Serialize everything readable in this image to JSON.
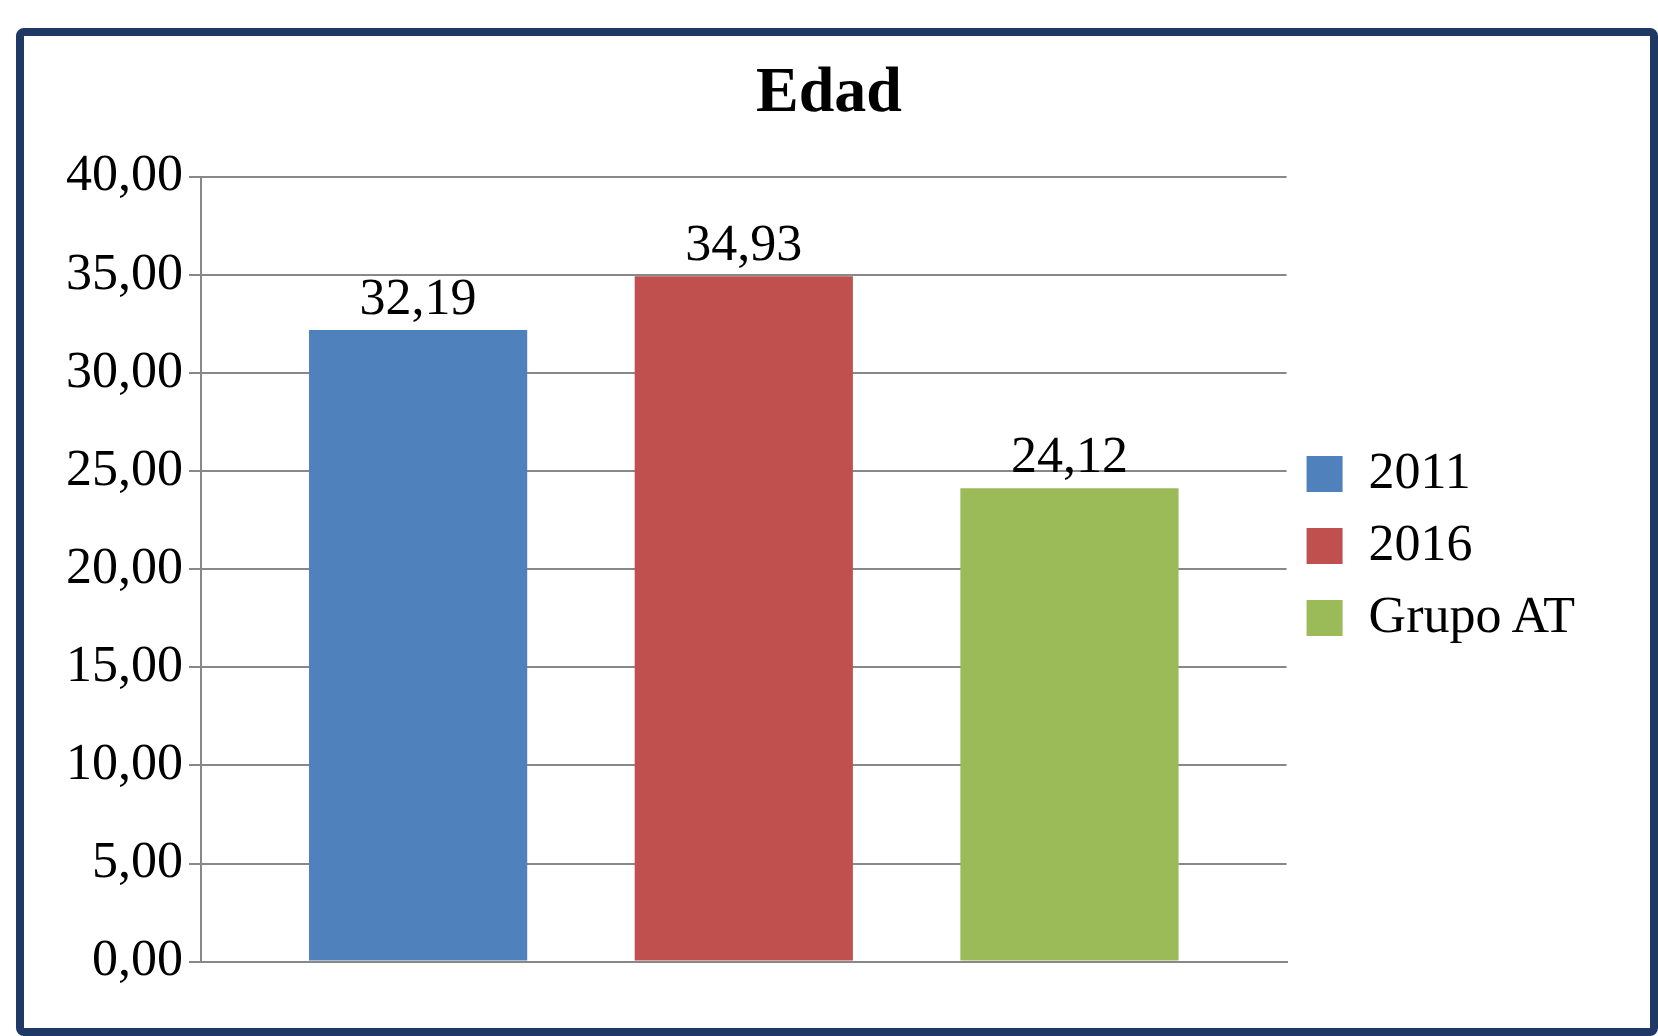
{
  "chart_data": {
    "type": "bar",
    "title": "Edad",
    "categories": [
      null
    ],
    "series": [
      {
        "name": "2011",
        "color": "#4f81bd",
        "values": [
          32.19
        ],
        "value_labels": [
          "32,19"
        ]
      },
      {
        "name": "2016",
        "color": "#c0504d",
        "values": [
          34.93
        ],
        "value_labels": [
          "34,93"
        ]
      },
      {
        "name": "Grupo AT",
        "color": "#9bbb59",
        "values": [
          24.12
        ],
        "value_labels": [
          "24,12"
        ]
      }
    ],
    "ylim": [
      0,
      40
    ],
    "yticks": [
      {
        "value": 0,
        "label": "0,00"
      },
      {
        "value": 5,
        "label": "5,00"
      },
      {
        "value": 10,
        "label": "10,00"
      },
      {
        "value": 15,
        "label": "15,00"
      },
      {
        "value": 20,
        "label": "20,00"
      },
      {
        "value": 25,
        "label": "25,00"
      },
      {
        "value": 30,
        "label": "30,00"
      },
      {
        "value": 35,
        "label": "35,00"
      },
      {
        "value": 40,
        "label": "40,00"
      }
    ],
    "grid": "y",
    "legend": "right"
  }
}
